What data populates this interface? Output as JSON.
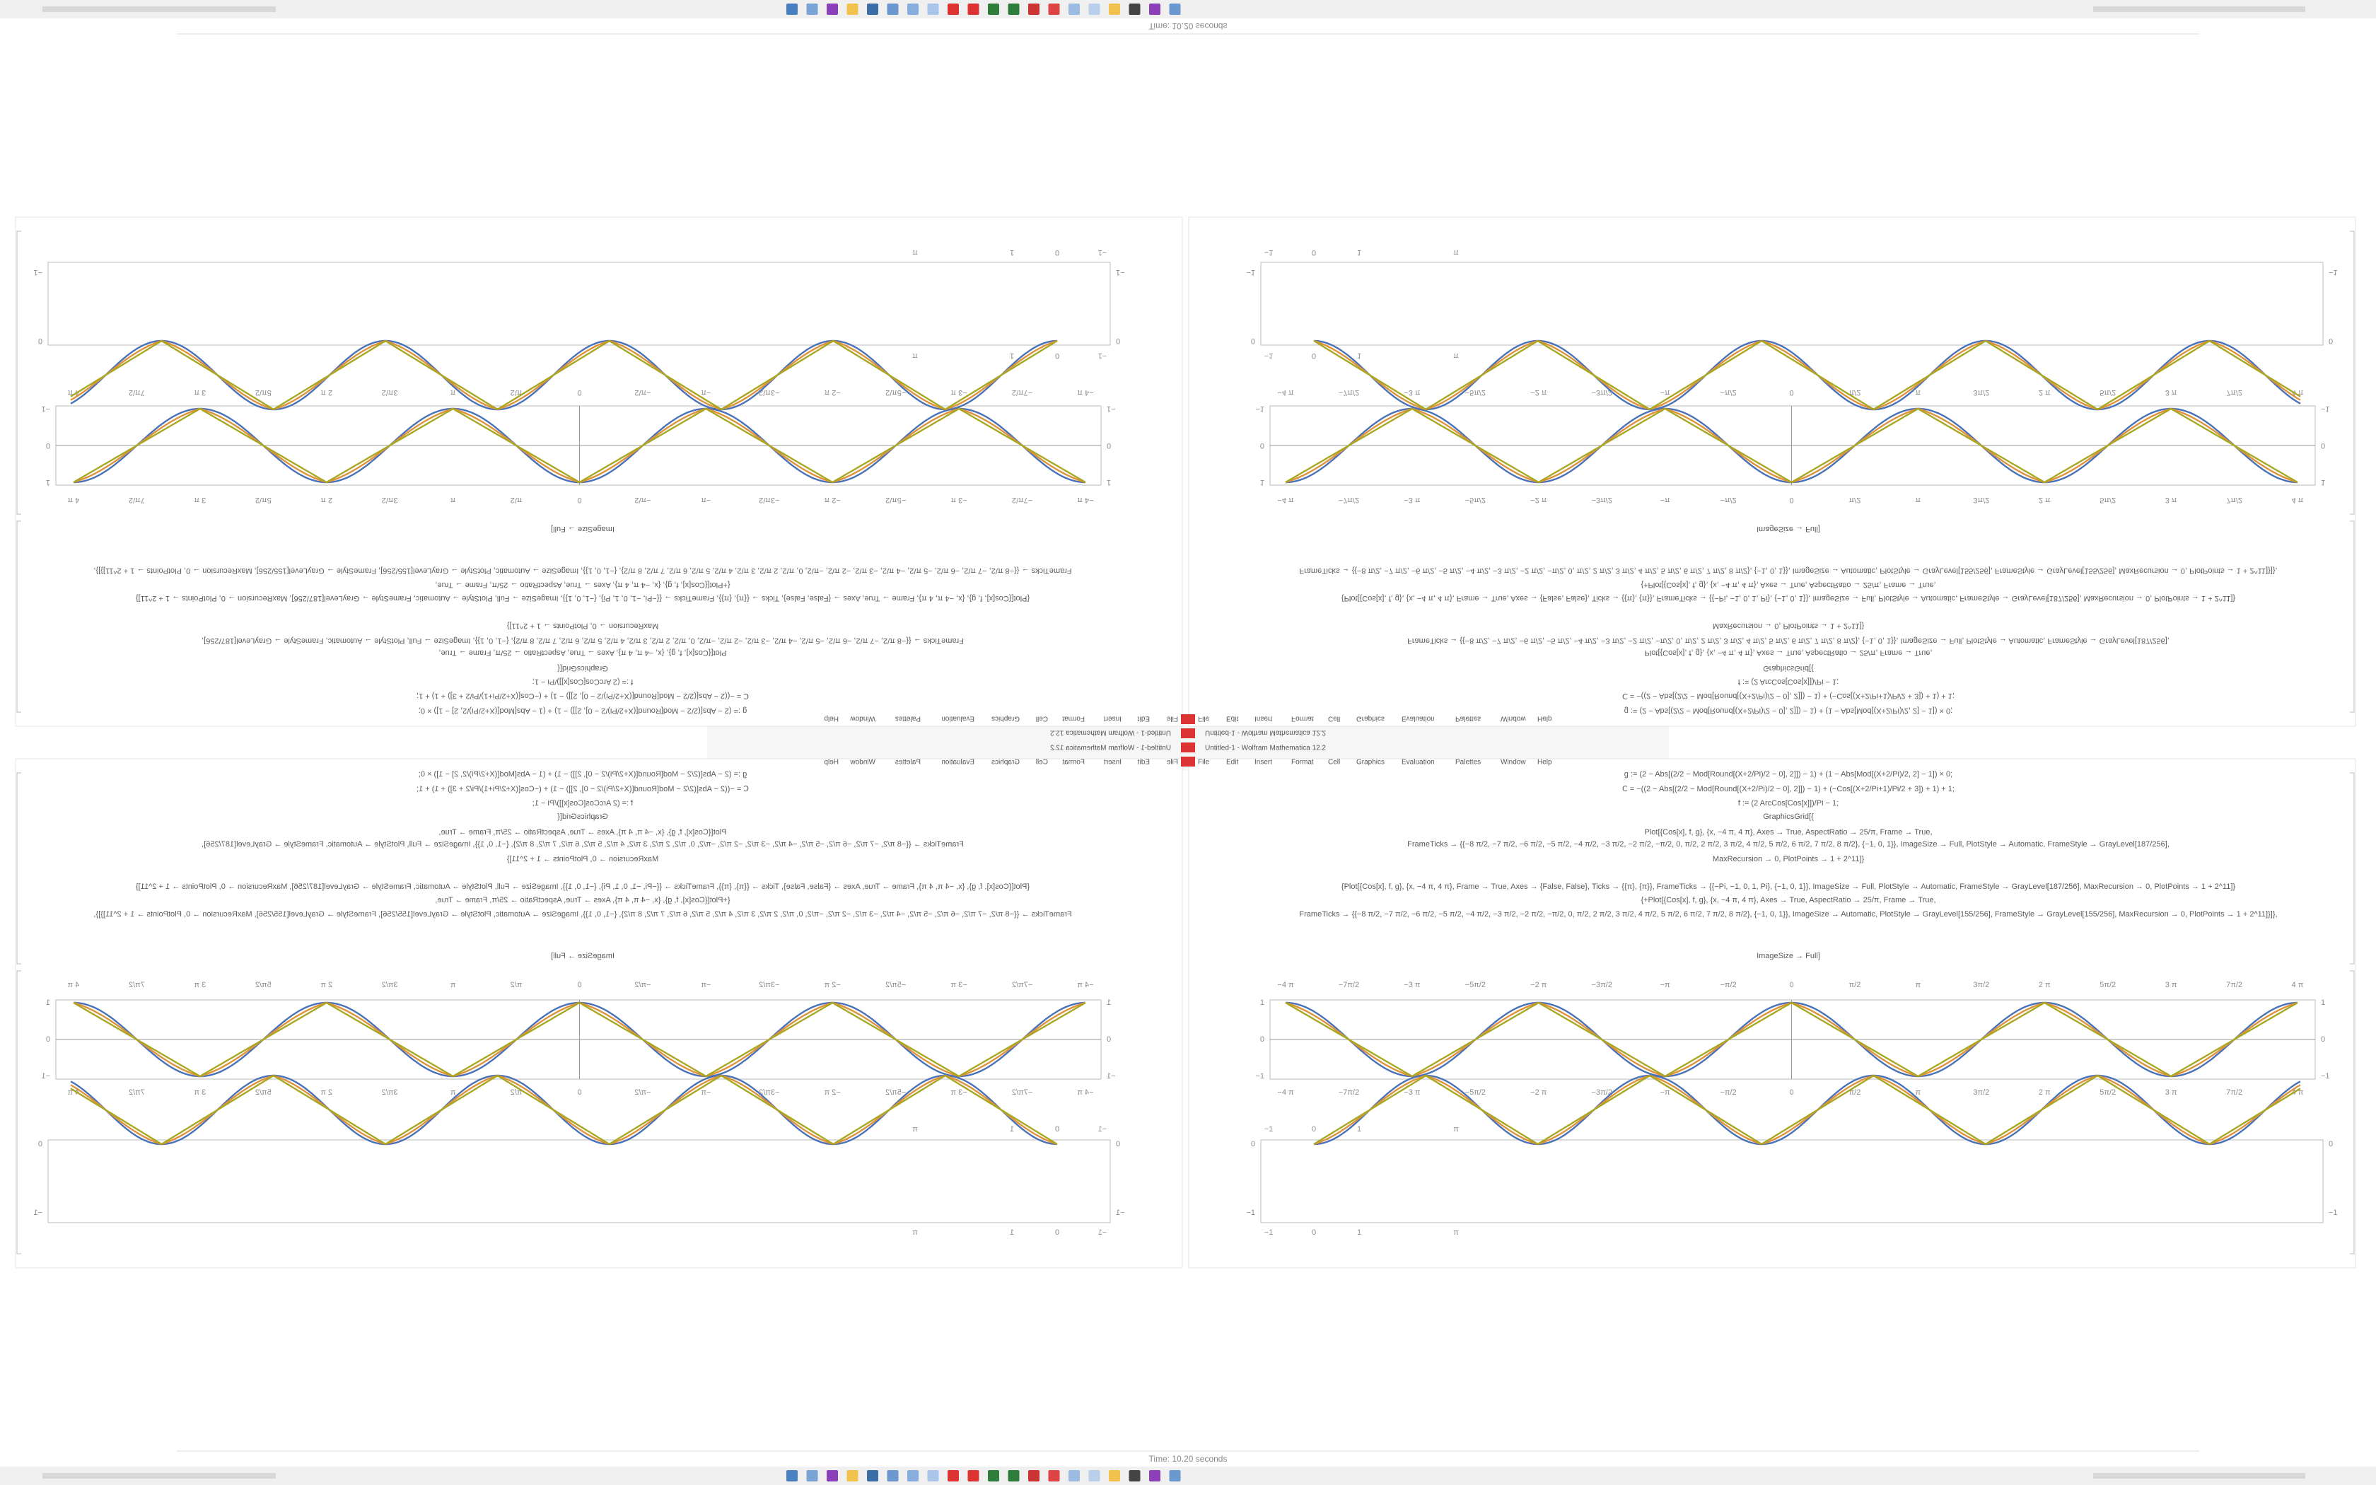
{
  "window": {
    "title": "Untitled-1 - Wolfram Mathematica 12.2",
    "status": "Time: 10.20 seconds",
    "menu": [
      "File",
      "Edit",
      "Insert",
      "Format",
      "Cell",
      "Graphics",
      "Evaluation",
      "Palettes",
      "Window",
      "Help"
    ]
  },
  "notebook": {
    "code_lines": [
      "g := (2 − Abs[(2/2 − Mod[Round[(X+2/Pi)/2 − 0], 2]]) − 1) + (1 − Abs[Mod[(X+2/Pi)/2, 2] − 1]) × 0;",
      "Ⅽ = −((2 − Abs[(2/2 − Mod[Round[(X+2/Pi)/2 − 0], 2]]) − 1) + (−Cos[(X+2/Pi+1)/Pi/2 + 3]) + 1) + 1;",
      "f := (2 ArcCos[Cos[x]])/Pi − 1;",
      "GraphicsGrid[{",
      "Plot[{Cos[x], f, g}, {x, −4 π, 4 π}, Axes → True, AspectRatio → 25/π, Frame → True,",
      "FrameTicks → {{−8 π/2, −7 π/2, −6 π/2, −5 π/2, −4 π/2, −3 π/2, −2 π/2, −π/2, 0, π/2, 2 π/2, 3 π/2, 4 π/2, 5 π/2, 6 π/2, 7 π/2, 8 π/2}, {−1, 0, 1}}, ImageSize → Full, PlotStyle → Automatic, FrameStyle → GrayLevel[187/256],",
      "MaxRecursion → 0, PlotPoints → 1 + 2^11]}",
      "{Plot[{Cos[x], f, g}, {x, −4 π, 4 π}, Frame → True, Axes → {False, False}, Ticks → {{π}, {π}}, FrameTicks → {{−Pi, −1, 0, 1, Pi}, {−1, 0, 1}}, ImageSize → Full, PlotStyle → Automatic, FrameStyle → GrayLevel[187/256], MaxRecursion → 0, PlotPoints → 1 + 2^11]}",
      "{+Plot[{Cos[x], f, g}, {x, −4 π, 4 π}, Axes → True, AspectRatio → 25/π, Frame → True,",
      "FrameTicks → {{−8 π/2, −7 π/2, −6 π/2, −5 π/2, −4 π/2, −3 π/2, −2 π/2, −π/2, 0, π/2, 2 π/2, 3 π/2, 4 π/2, 5 π/2, 6 π/2, 7 π/2, 8 π/2}, {−1, 0, 1}}, ImageSize → Automatic, PlotStyle → GrayLevel[155/256], FrameStyle → GrayLevel[155/256], MaxRecursion → 0, PlotPoints → 1 + 2^11]}]},"
    ],
    "output_label": "ImageSize → Full]",
    "plot1_xticks": [
      "−4 π",
      "−7π/2",
      "−3 π",
      "−5π/2",
      "−2 π",
      "−3π/2",
      "−π",
      "−π/2",
      "0",
      "π/2",
      "π",
      "3π/2",
      "2 π",
      "5π/2",
      "3 π",
      "7π/2",
      "4 π"
    ],
    "plot1_yticks": [
      "1",
      "0",
      "−1"
    ],
    "plot2_xticks": [
      "−1",
      "0",
      "1",
      "π"
    ],
    "plot2_yticks": [
      "0",
      "−1"
    ]
  }
}
